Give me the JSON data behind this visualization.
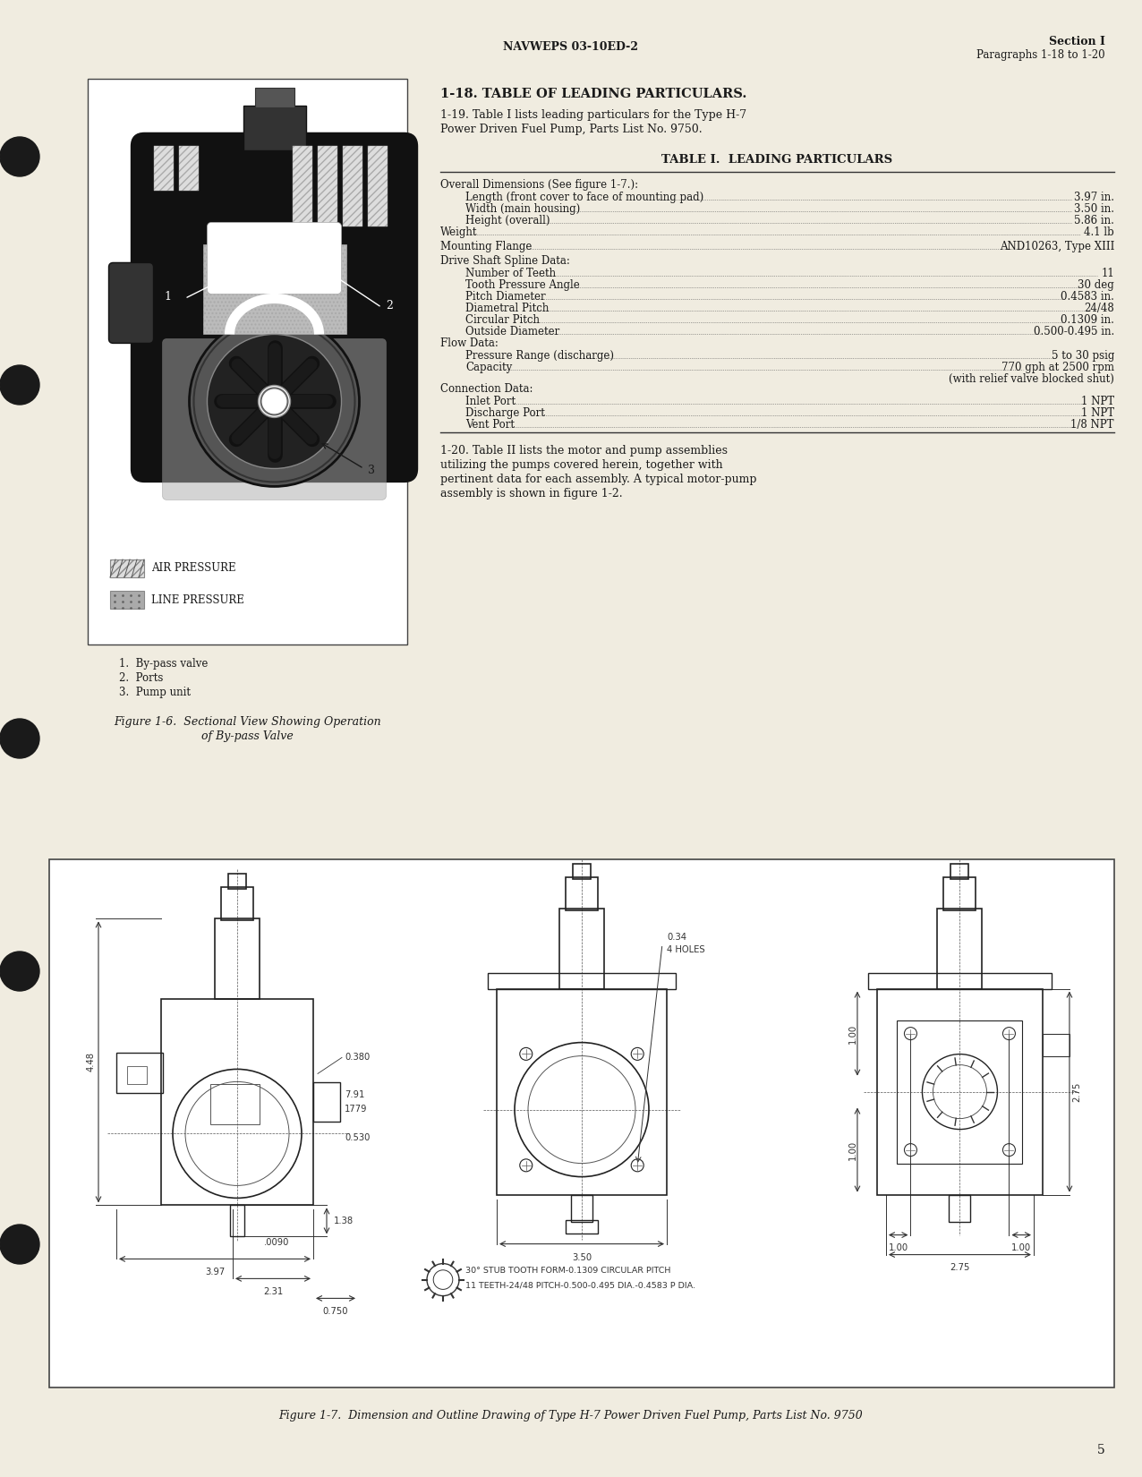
{
  "bg_color": "#f0ece0",
  "page_number": "5",
  "header_left": "NAVWEPS 03-10ED-2",
  "header_right": "Section I",
  "header_right2": "Paragraphs 1-18 to 1-20",
  "section_title": "1-18. TABLE OF LEADING PARTICULARS.",
  "para_1_19_line1": "1-19. Table I lists leading particulars for the Type H-7",
  "para_1_19_line2": "Power Driven Fuel Pump, Parts List No. 9750.",
  "table_title": "TABLE I.  LEADING PARTICULARS",
  "table_rows": [
    {
      "label": "Overall Dimensions (See figure 1-7.):",
      "value": "",
      "indent": 0
    },
    {
      "label": "Length (front cover to face of mounting pad)",
      "value": "3.97 in.",
      "indent": 1
    },
    {
      "label": "Width (main housing)",
      "value": "3.50 in.",
      "indent": 1
    },
    {
      "label": "Height (overall)",
      "value": "5.86 in.",
      "indent": 1
    },
    {
      "label": "Weight",
      "value": "4.1 lb",
      "indent": 0
    },
    {
      "label": "Mounting Flange",
      "value": "AND10263, Type XIII",
      "indent": 0
    },
    {
      "label": "Drive Shaft Spline Data:",
      "value": "",
      "indent": 0
    },
    {
      "label": "Number of Teeth",
      "value": "11",
      "indent": 1
    },
    {
      "label": "Tooth Pressure Angle",
      "value": "30 deg",
      "indent": 1
    },
    {
      "label": "Pitch Diameter",
      "value": "0.4583 in.",
      "indent": 1
    },
    {
      "label": "Diametral Pitch",
      "value": "24/48",
      "indent": 1
    },
    {
      "label": "Circular Pitch",
      "value": "0.1309 in.",
      "indent": 1
    },
    {
      "label": "Outside Diameter",
      "value": "0.500-0.495 in.",
      "indent": 1
    },
    {
      "label": "Flow Data:",
      "value": "",
      "indent": 0
    },
    {
      "label": "Pressure Range (discharge)",
      "value": "5 to 30 psig",
      "indent": 1
    },
    {
      "label": "Capacity",
      "value": "770 gph at 2500 rpm",
      "indent": 1
    },
    {
      "label": "",
      "value": "(with relief valve blocked shut)",
      "indent": 2
    },
    {
      "label": "Connection Data:",
      "value": "",
      "indent": 0
    },
    {
      "label": "Inlet Port",
      "value": "1 NPT",
      "indent": 1
    },
    {
      "label": "Discharge Port",
      "value": "1 NPT",
      "indent": 1
    },
    {
      "label": "Vent Port",
      "value": "1/8 NPT",
      "indent": 1
    }
  ],
  "para_1_20_lines": [
    "1-20. Table II lists the motor and pump assemblies",
    "utilizing the pumps covered herein, together with",
    "pertinent data for each assembly. A typical motor-pump",
    "assembly is shown in figure 1-2."
  ],
  "fig1_6_caption_line1": "Figure 1-6.  Sectional View Showing Operation",
  "fig1_6_caption_line2": "of By-pass Valve",
  "fig1_6_labels": [
    "1.  By-pass valve",
    "2.  Ports",
    "3.  Pump unit"
  ],
  "fig1_6_legend": [
    "AIR PRESSURE",
    "LINE PRESSURE"
  ],
  "fig1_7_caption": "Figure 1-7.  Dimension and Outline Drawing of Type H-7 Power Driven Fuel Pump, Parts List No. 9750",
  "text_color": "#1a1a1a",
  "dim_color": "#222222"
}
